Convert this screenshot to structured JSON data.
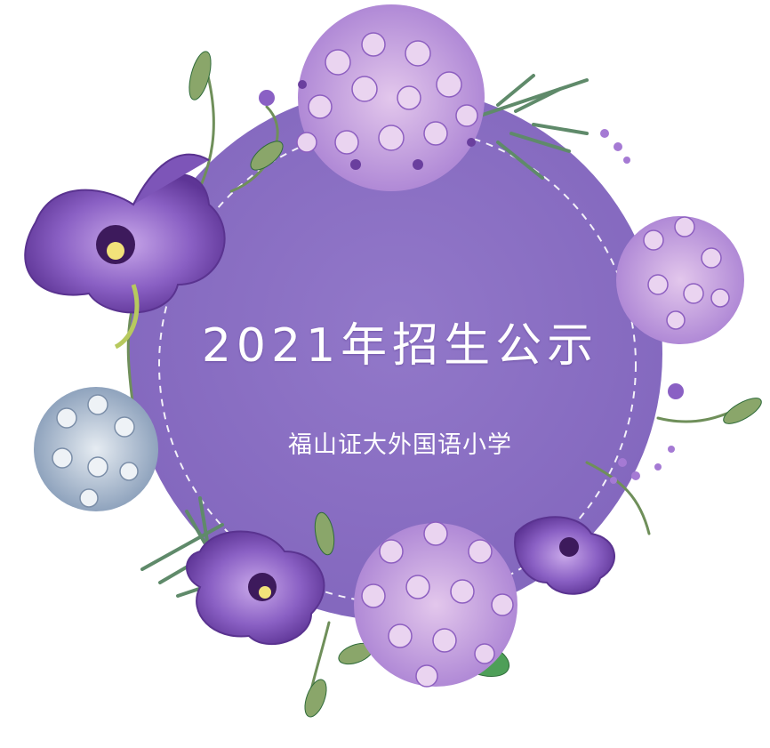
{
  "poster": {
    "title": "2021年招生公示",
    "subtitle": "福山证大外国语小学"
  },
  "colors": {
    "circle": "#8b6fc4",
    "circle_dash": "#ffffff",
    "petal_light": "#c9a8e4",
    "petal_mid": "#a57ad4",
    "petal_dark": "#6a3f9e",
    "iris": "#7d55b8",
    "iris_throat": "#3d1a5c",
    "leaf": "#4fa35a",
    "leaf_olive": "#8aa66a",
    "blue_hydrangea": "#a9b9cf"
  },
  "icons": {
    "decoration": "watercolor-floral-wreath"
  }
}
